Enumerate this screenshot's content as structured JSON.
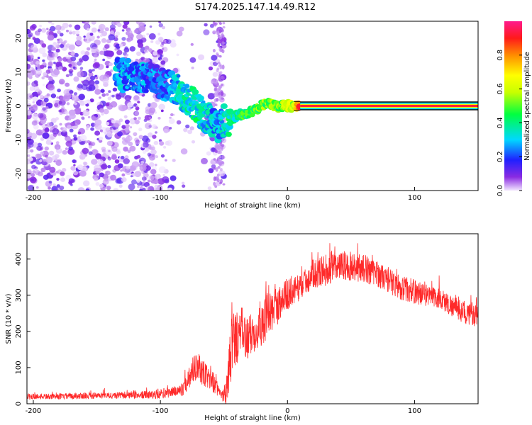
{
  "title": "S174.2025.147.14.49.R12",
  "chart_data": [
    {
      "type": "heatmap",
      "xlabel": "Height of straight line (km)",
      "ylabel": "Frequency (Hz)",
      "xlim": [
        -205,
        150
      ],
      "ylim": [
        -25,
        25
      ],
      "xticks": [
        -200,
        -100,
        0,
        100
      ],
      "yticks": [
        -20,
        -10,
        0,
        10,
        20
      ],
      "colorbar": {
        "label": "Normalized spectral amplitude",
        "range": [
          0.0,
          1.0
        ],
        "ticks": [
          0.0,
          0.2,
          0.4,
          0.6,
          0.8
        ],
        "tick_labels": [
          "0.0",
          "0.2",
          "0.4",
          "0.6",
          "0.8"
        ],
        "colormap": "rainbow (purple-blue-cyan-green-yellow-orange-red-magenta)"
      },
      "ridge": {
        "x": [
          -135,
          -120,
          -105,
          -95,
          -88,
          -80,
          -70,
          -62,
          -55,
          -48,
          -45,
          -40,
          -30,
          -20,
          -15,
          -10,
          0,
          5,
          10,
          50,
          100,
          150
        ],
        "freq": [
          9,
          9,
          8,
          6,
          5,
          3,
          -1,
          -4,
          -6,
          -4,
          -4,
          -3,
          -2,
          0,
          1,
          0,
          0,
          0,
          0,
          0,
          0,
          0
        ],
        "amp": [
          0.25,
          0.25,
          0.2,
          0.2,
          0.3,
          0.35,
          0.35,
          0.3,
          0.25,
          0.35,
          0.4,
          0.4,
          0.45,
          0.5,
          0.5,
          0.5,
          0.55,
          0.6,
          0.9,
          0.95,
          0.95,
          0.95
        ]
      },
      "noise_region_x": [
        -205,
        -50
      ],
      "gap_region_x": [
        -95,
        -60
      ]
    },
    {
      "type": "line",
      "xlabel": "Height of straight line (km)",
      "ylabel": "SNR (10 * v/v)",
      "xlim": [
        -205,
        150
      ],
      "ylim": [
        0,
        470
      ],
      "xticks": [
        -200,
        -100,
        0,
        100
      ],
      "yticks": [
        0,
        100,
        200,
        300,
        400
      ],
      "color": "#ff2a2a",
      "series": [
        {
          "x": [
            -205,
            -180,
            -160,
            -140,
            -120,
            -105,
            -95,
            -88,
            -82,
            -78,
            -72,
            -66,
            -60,
            -55,
            -52,
            -48,
            -44,
            -38,
            -32,
            -26,
            -20,
            -14,
            -8,
            -2,
            5,
            12,
            20,
            30,
            40,
            50,
            60,
            70,
            80,
            90,
            100,
            110,
            120,
            130,
            140,
            150
          ],
          "y": [
            20,
            20,
            22,
            22,
            24,
            25,
            30,
            35,
            40,
            70,
            110,
            80,
            70,
            40,
            20,
            30,
            160,
            200,
            180,
            200,
            230,
            250,
            270,
            300,
            310,
            330,
            360,
            370,
            380,
            380,
            375,
            360,
            340,
            320,
            310,
            300,
            290,
            270,
            250,
            240
          ],
          "noise": [
            8,
            8,
            9,
            9,
            10,
            12,
            15,
            15,
            18,
            30,
            45,
            40,
            35,
            20,
            10,
            40,
            90,
            80,
            60,
            60,
            70,
            60,
            55,
            45,
            40,
            35,
            40,
            45,
            45,
            40,
            40,
            35,
            35,
            35,
            35,
            30,
            30,
            30,
            30,
            30
          ]
        }
      ]
    }
  ]
}
